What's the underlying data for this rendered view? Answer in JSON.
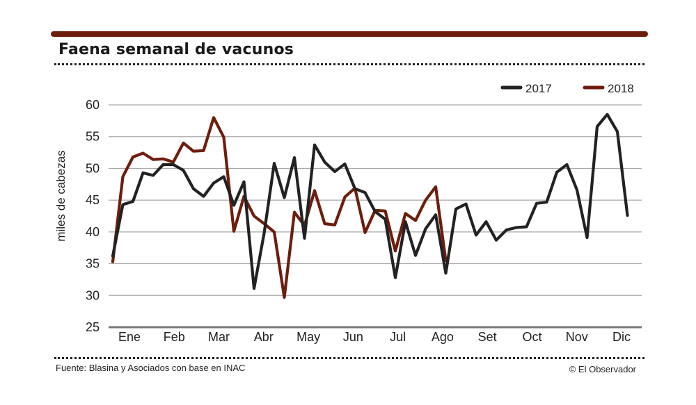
{
  "header": {
    "title": "Faena semanal de vacunos",
    "bar_color": "#6e1d0c"
  },
  "footer": {
    "source": "Fuente: Blasina y Asociados con base en INAC",
    "copyright": "© El Observador"
  },
  "chart_data": {
    "type": "line",
    "title": "Faena semanal de vacunos",
    "ylabel": "miles de cabezas",
    "xlabel": "",
    "ylim": [
      25,
      60
    ],
    "yticks": [
      25,
      30,
      35,
      40,
      45,
      50,
      55,
      60
    ],
    "grid": true,
    "legend_position": "top-right",
    "x_weeks": 53,
    "month_labels": [
      "Ene",
      "Feb",
      "Mar",
      "Abr",
      "May",
      "Jun",
      "Jul",
      "Ago",
      "Set",
      "Oct",
      "Nov",
      "Dic"
    ],
    "series": [
      {
        "name": "2017",
        "color": "#222222",
        "values": [
          36.2,
          44.3,
          44.8,
          49.3,
          48.9,
          50.6,
          50.6,
          49.7,
          46.8,
          45.6,
          47.7,
          48.7,
          44.2,
          47.9,
          31.1,
          39.8,
          50.8,
          45.4,
          51.7,
          39.0,
          53.7,
          51.0,
          49.5,
          50.7,
          46.8,
          46.2,
          43.2,
          42.0,
          32.8,
          41.6,
          36.3,
          40.5,
          42.7,
          33.5,
          43.6,
          44.4,
          39.5,
          41.6,
          38.7,
          40.3,
          40.7,
          40.8,
          44.5,
          44.7,
          49.4,
          50.6,
          46.6,
          39.1,
          56.6,
          58.5,
          55.8,
          42.6
        ]
      },
      {
        "name": "2018",
        "color": "#6e1d0c",
        "values": [
          35.3,
          48.7,
          51.8,
          52.4,
          51.4,
          51.5,
          51.0,
          54.0,
          52.7,
          52.8,
          58.0,
          54.9,
          40.1,
          45.6,
          42.5,
          41.3,
          40.0,
          29.7,
          43.1,
          41.0,
          46.5,
          41.3,
          41.1,
          45.5,
          46.9,
          39.9,
          43.4,
          43.3,
          37.0,
          42.9,
          41.8,
          45.0,
          47.1,
          35.5
        ]
      }
    ]
  }
}
